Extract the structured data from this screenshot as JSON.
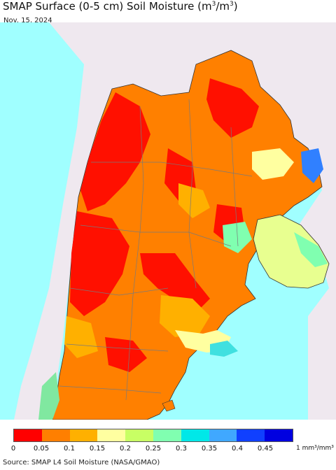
{
  "title_main": "SMAP Surface (0-5 cm) Soil Moisture (m",
  "title_unit_sup1": "3",
  "title_mid": "/m",
  "title_unit_sup2": "3",
  "title_end": ")",
  "date": "Nov. 15, 2024",
  "legend": {
    "colors": [
      "#ff0000",
      "#ff7f00",
      "#ffb000",
      "#ffffa0",
      "#c8ff64",
      "#80ffb0",
      "#00e8e8",
      "#40a8ff",
      "#1040ff",
      "#0000e0"
    ],
    "ticks": [
      "0",
      "0.05",
      "0.1",
      "0.15",
      "0.2",
      "0.25",
      "0.3",
      "0.35",
      "0.4",
      "0.45"
    ],
    "unit": "1 mm³/mm³"
  },
  "source": "Source: SMAP L4 Soil Moisture (NASA/GMAO)",
  "colors": {
    "ocean": "#a0ffff",
    "land_nodata": "#efe8ef",
    "border": "#333333",
    "province_line": "#7a7a7a"
  }
}
